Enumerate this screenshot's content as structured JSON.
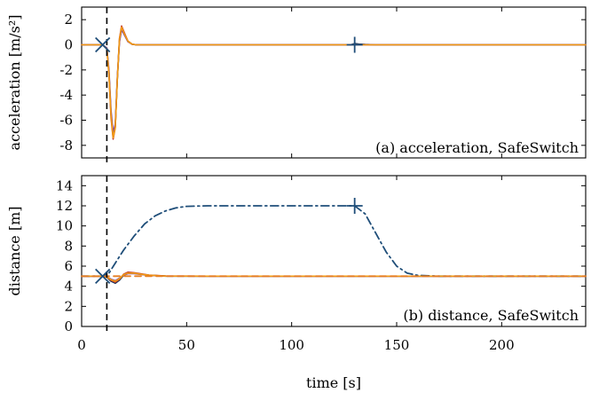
{
  "chart_data": [
    {
      "type": "line",
      "panel_label": "(a) acceleration, SafeSwitch",
      "title": "",
      "xlabel": "",
      "ylabel": "acceleration [m/s²]",
      "xlim": [
        0,
        240
      ],
      "ylim": [
        -9,
        3
      ],
      "x_ticks": [
        0,
        50,
        100,
        150,
        200
      ],
      "x_tick_labels": [
        "",
        "",
        "",
        "",
        ""
      ],
      "y_ticks": [
        2,
        0,
        -2,
        -4,
        -6,
        -8
      ],
      "y_tick_labels": [
        "2",
        "0",
        "-2",
        "-4",
        "-6",
        "-8"
      ],
      "threshold_x": 12,
      "series": [
        {
          "color": "#1f3a5f",
          "dash": "",
          "x": [
            0,
            10,
            12,
            13,
            14,
            15,
            16,
            17,
            18,
            19,
            20,
            22,
            24,
            26,
            30,
            40,
            60,
            100,
            120,
            128,
            130,
            132,
            135,
            140,
            150,
            240
          ],
          "y": [
            0,
            0,
            -0.3,
            -2.2,
            -5.5,
            -7.3,
            -6.5,
            -2.8,
            0.3,
            1.3,
            1.0,
            0.3,
            0.05,
            0,
            0,
            0,
            0,
            0,
            0,
            0,
            0.1,
            0.06,
            0.03,
            0,
            0,
            0
          ]
        },
        {
          "color": "#c0392b",
          "dash": "",
          "x": [
            0,
            10,
            12,
            13,
            14,
            15,
            16,
            17,
            18,
            19,
            20,
            22,
            24,
            26,
            30,
            40,
            60,
            240
          ],
          "y": [
            0,
            0,
            -0.3,
            -2.4,
            -5.8,
            -7.5,
            -6.6,
            -2.7,
            0.5,
            1.5,
            1.1,
            0.3,
            0.05,
            0,
            0,
            0,
            0,
            0
          ]
        },
        {
          "color": "#7d3c98",
          "dash": "",
          "x": [
            0,
            10,
            12,
            13,
            14,
            15,
            16,
            17,
            18,
            19,
            20,
            22,
            24,
            26,
            30,
            40,
            60,
            240
          ],
          "y": [
            0,
            0,
            -0.25,
            -2.0,
            -5.2,
            -7.0,
            -6.3,
            -2.6,
            0.2,
            1.2,
            0.9,
            0.25,
            0.04,
            0,
            0,
            0,
            0,
            0
          ]
        },
        {
          "color": "#f39c12",
          "dash": "",
          "x": [
            0,
            10,
            12,
            13,
            14,
            15,
            16,
            17,
            18,
            19,
            20,
            22,
            24,
            26,
            30,
            40,
            60,
            240
          ],
          "y": [
            0,
            0,
            -0.3,
            -2.3,
            -5.6,
            -7.4,
            -6.6,
            -2.8,
            0.4,
            1.4,
            1.0,
            0.3,
            0.05,
            0,
            0,
            0,
            0,
            0
          ]
        }
      ],
      "markers": [
        {
          "kind": "x-cross",
          "x": 10,
          "y": 0
        },
        {
          "kind": "plus",
          "x": 130,
          "y": 0
        }
      ]
    },
    {
      "type": "line",
      "panel_label": "(b) distance, SafeSwitch",
      "title": "",
      "xlabel": "time [s]",
      "ylabel": "distance [m]",
      "xlim": [
        0,
        240
      ],
      "ylim": [
        0,
        15
      ],
      "x_ticks": [
        0,
        50,
        100,
        150,
        200
      ],
      "x_tick_labels": [
        "0",
        "50",
        "100",
        "150",
        "200"
      ],
      "y_ticks": [
        14,
        12,
        10,
        8,
        6,
        4,
        2,
        0
      ],
      "y_tick_labels": [
        "14",
        "12",
        "10",
        "8",
        "6",
        "4",
        "2",
        "0"
      ],
      "threshold_x": 12,
      "series": [
        {
          "color": "#1f4e79",
          "dash": "9 4 2 4",
          "x": [
            0,
            10,
            13,
            16,
            20,
            25,
            30,
            35,
            40,
            45,
            50,
            60,
            80,
            100,
            120,
            130,
            135,
            140,
            145,
            150,
            155,
            160,
            170,
            180,
            240
          ],
          "y": [
            5,
            5,
            5.3,
            6.3,
            7.6,
            9.0,
            10.2,
            11.0,
            11.5,
            11.8,
            11.95,
            12,
            12,
            12,
            12,
            12,
            11.2,
            9.3,
            7.4,
            6.0,
            5.3,
            5.08,
            5.0,
            5.0,
            5.0
          ]
        },
        {
          "color": "#1f3a5f",
          "dash": "",
          "x": [
            0,
            10,
            12,
            14,
            16,
            18,
            20,
            22,
            25,
            28,
            32,
            40,
            60,
            240
          ],
          "y": [
            5,
            5,
            4.9,
            4.5,
            4.3,
            4.6,
            5.1,
            5.35,
            5.3,
            5.2,
            5.1,
            5.0,
            5.0,
            5.0
          ]
        },
        {
          "color": "#c0392b",
          "dash": "",
          "x": [
            0,
            10,
            12,
            14,
            16,
            18,
            20,
            22,
            25,
            28,
            32,
            40,
            60,
            240
          ],
          "y": [
            5,
            5,
            4.9,
            4.6,
            4.4,
            4.7,
            5.2,
            5.4,
            5.35,
            5.25,
            5.12,
            5.02,
            5.0,
            5.0
          ]
        },
        {
          "color": "#7d3c98",
          "dash": "",
          "x": [
            0,
            10,
            12,
            14,
            16,
            18,
            20,
            22,
            25,
            28,
            32,
            40,
            60,
            240
          ],
          "y": [
            5,
            5,
            4.95,
            4.7,
            4.55,
            4.8,
            5.1,
            5.25,
            5.25,
            5.18,
            5.08,
            5.01,
            5.0,
            5.0
          ]
        },
        {
          "color": "#f39c12",
          "dash": "",
          "x": [
            0,
            10,
            12,
            14,
            16,
            18,
            20,
            22,
            25,
            28,
            32,
            40,
            60,
            240
          ],
          "y": [
            5,
            5,
            4.92,
            4.65,
            4.5,
            4.75,
            5.15,
            5.3,
            5.3,
            5.2,
            5.1,
            5.01,
            5.0,
            5.0
          ]
        },
        {
          "color": "#e67e22",
          "dash": "7 5",
          "x": [
            0,
            240
          ],
          "y": [
            5,
            5
          ]
        }
      ],
      "markers": [
        {
          "kind": "x-cross",
          "x": 10,
          "y": 5
        },
        {
          "kind": "plus",
          "x": 130,
          "y": 12
        }
      ]
    }
  ]
}
